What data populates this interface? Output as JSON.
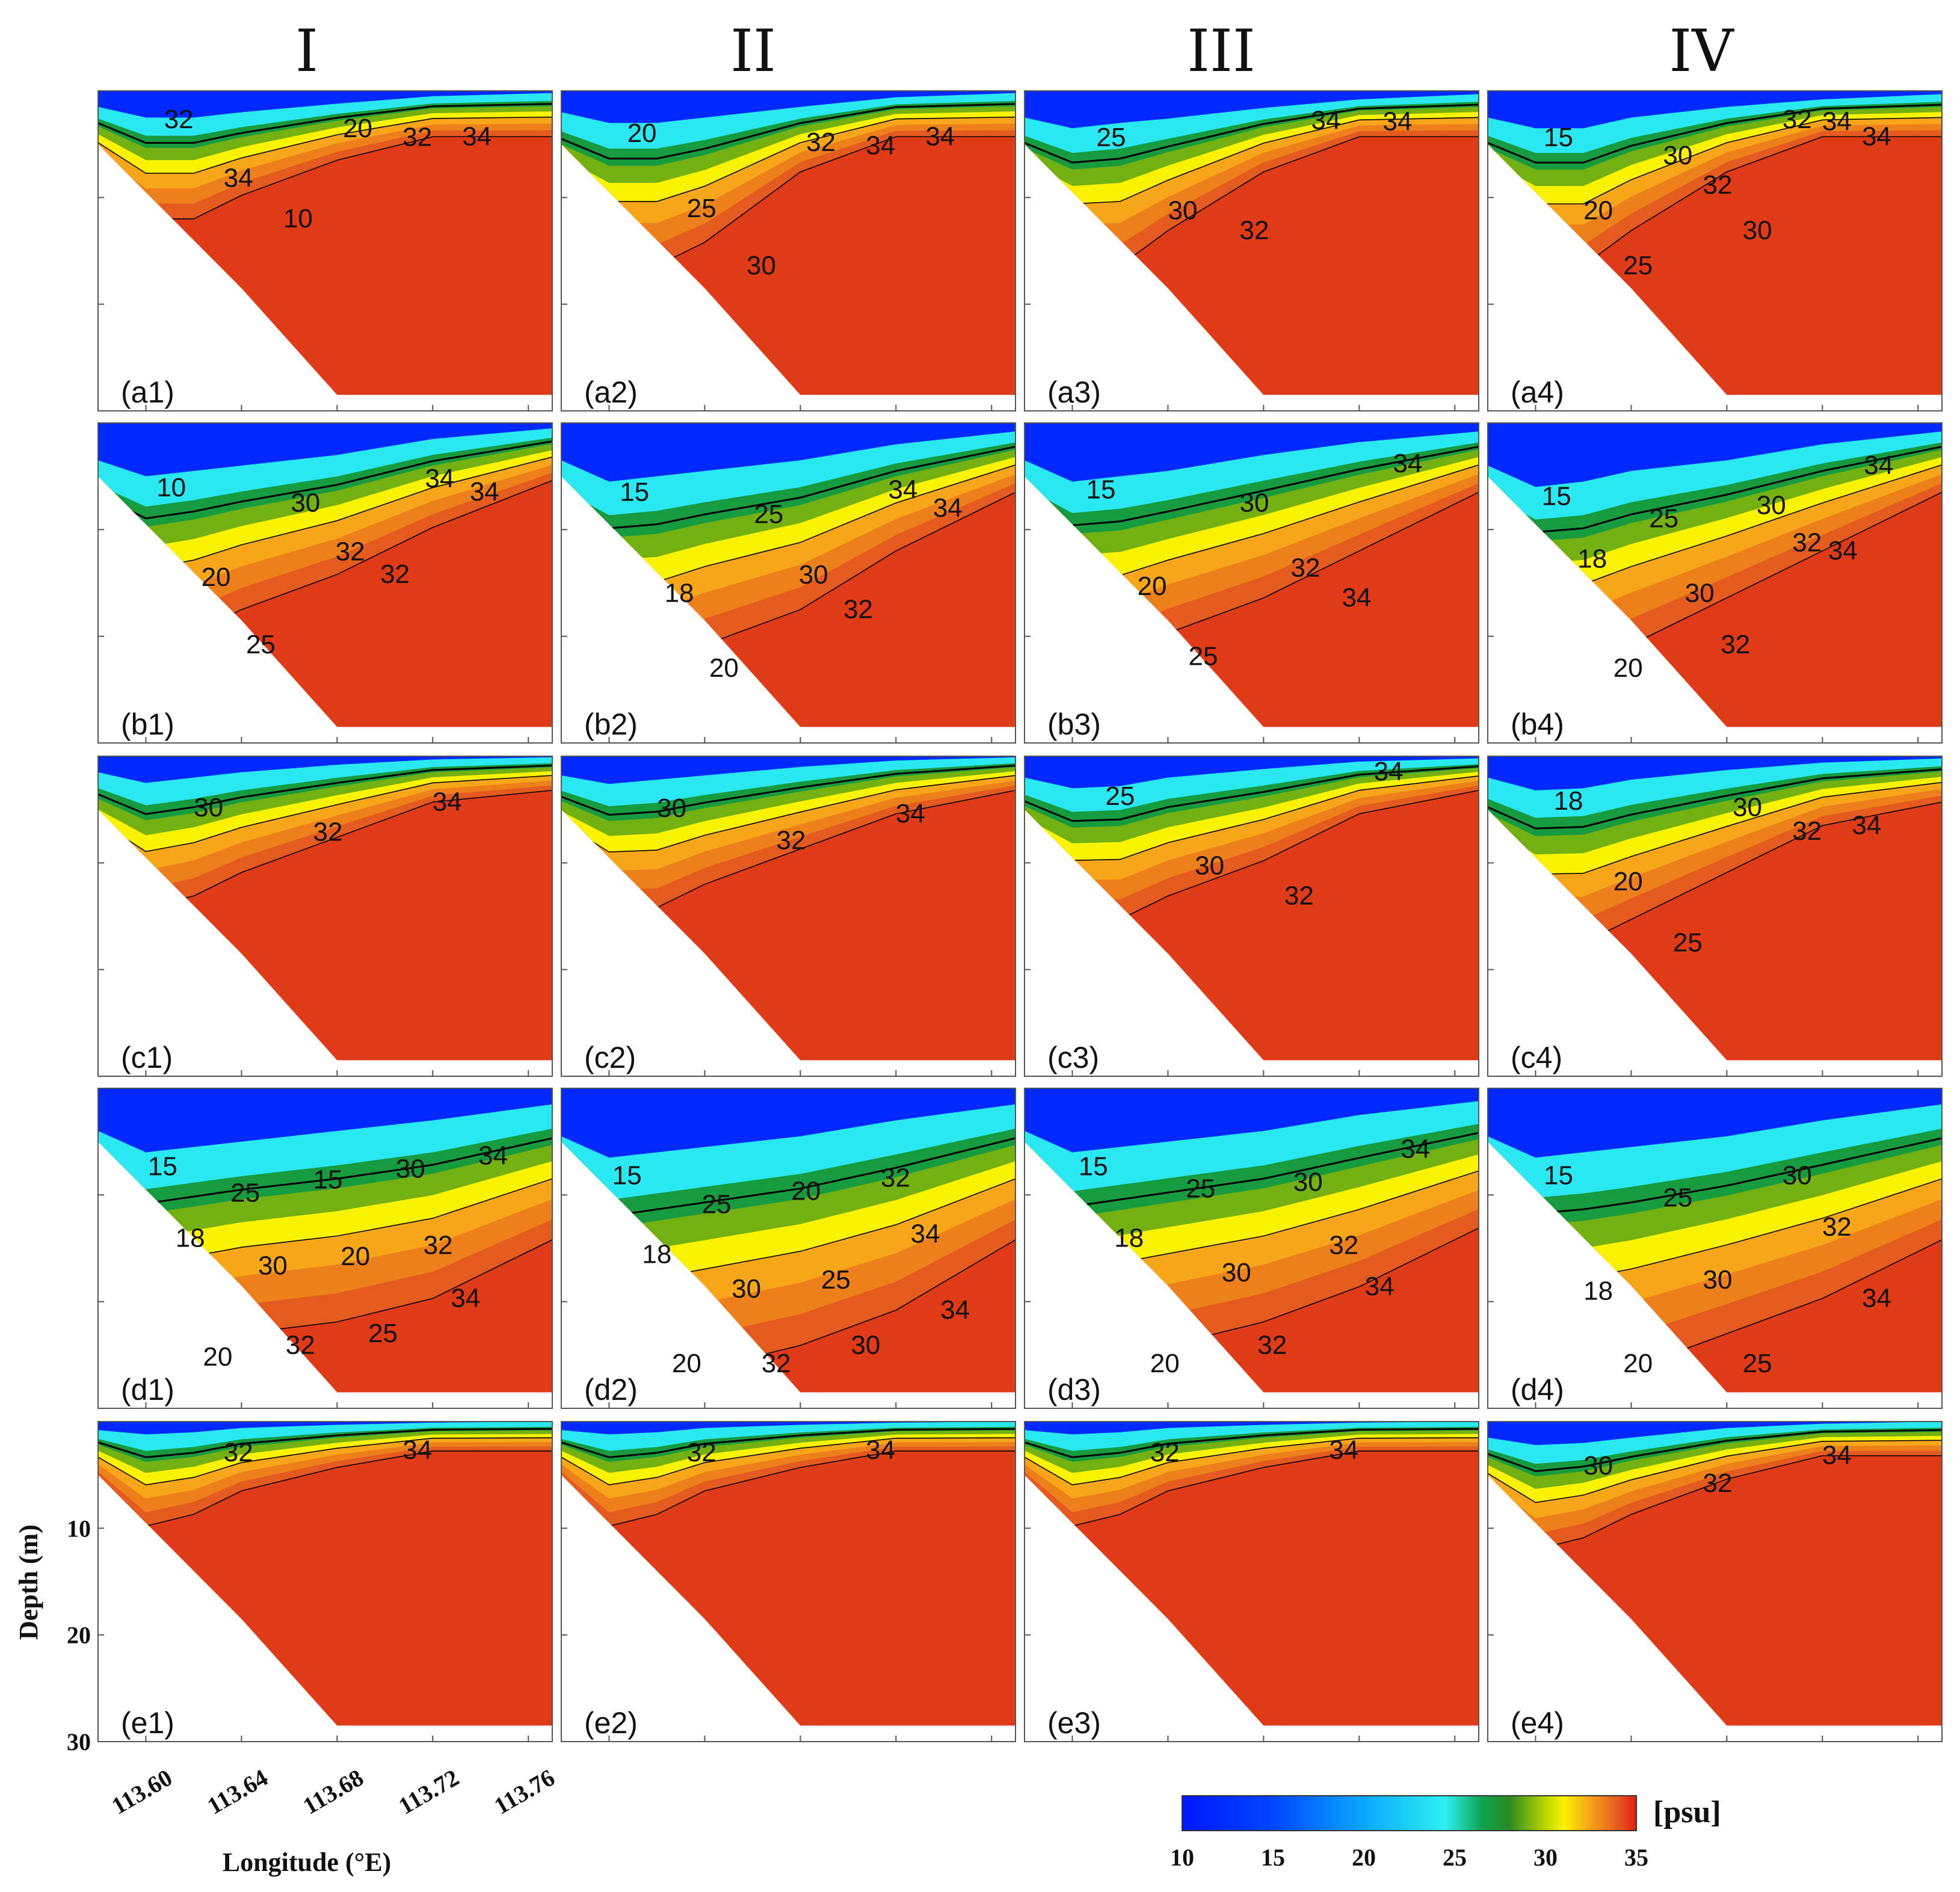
{
  "chart_data": {
    "type": "heatmap",
    "variable": "salinity",
    "column_titles": [
      "I",
      "II",
      "III",
      "IV"
    ],
    "row_ids": [
      "a",
      "b",
      "c",
      "d",
      "e"
    ],
    "panel_labels": [
      [
        "(a1)",
        "(a2)",
        "(a3)",
        "(a4)"
      ],
      [
        "(b1)",
        "(b2)",
        "(b3)",
        "(b4)"
      ],
      [
        "(c1)",
        "(c2)",
        "(c3)",
        "(c4)"
      ],
      [
        "(d1)",
        "(d2)",
        "(d3)",
        "(d4)"
      ],
      [
        "(e1)",
        "(e2)",
        "(e3)",
        "(e4)"
      ]
    ],
    "xlabel": "Longitude (°E)",
    "ylabel": "Depth (m)",
    "xticks": [
      "113.60",
      "113.64",
      "113.68",
      "113.72",
      "113.76"
    ],
    "xtick_values": [
      113.6,
      113.64,
      113.68,
      113.72,
      113.76
    ],
    "xlim": [
      113.58,
      113.77
    ],
    "yticks": [
      "10",
      "20",
      "30"
    ],
    "ytick_values": [
      10,
      20,
      30
    ],
    "ylim": [
      0,
      30
    ],
    "seabed": {
      "lon": [
        113.58,
        113.6,
        113.62,
        113.64,
        113.66,
        113.68,
        113.77
      ],
      "depth": [
        5,
        9.5,
        14,
        18.5,
        23.5,
        28.5,
        28.5
      ]
    },
    "colorbar": {
      "min": 10,
      "max": 35,
      "ticks": [
        "10",
        "15",
        "20",
        "25",
        "30",
        "35"
      ],
      "unit": "[psu]"
    },
    "fresh_layer_depth_m": [
      [
        [
          1.5,
          2.5,
          2.5,
          2.0,
          1.2,
          0.5,
          0.2
        ],
        [
          2.0,
          3.0,
          3.0,
          2.5,
          1.5,
          0.6,
          0.2
        ],
        [
          2.5,
          3.5,
          3.0,
          2.6,
          1.6,
          0.8,
          0.3
        ],
        [
          2.5,
          3.5,
          3.5,
          2.5,
          1.5,
          0.8,
          0.3
        ]
      ],
      [
        [
          3.5,
          5.0,
          4.5,
          4.0,
          3.0,
          1.5,
          0.5
        ],
        [
          3.5,
          5.5,
          5.0,
          4.5,
          3.5,
          2.0,
          0.8
        ],
        [
          3.5,
          5.5,
          5.0,
          4.5,
          3.0,
          1.8,
          0.8
        ],
        [
          4.0,
          6.0,
          5.5,
          4.5,
          3.5,
          2.0,
          0.8
        ]
      ],
      [
        [
          1.5,
          2.5,
          2.0,
          1.5,
          0.8,
          0.3,
          0.1
        ],
        [
          1.8,
          2.6,
          2.2,
          1.8,
          1.0,
          0.4,
          0.1
        ],
        [
          2.0,
          3.0,
          2.8,
          2.0,
          1.2,
          0.5,
          0.2
        ],
        [
          2.0,
          3.2,
          3.0,
          2.2,
          1.3,
          0.6,
          0.2
        ]
      ],
      [
        [
          4.0,
          6.0,
          5.5,
          5.0,
          4.0,
          3.0,
          1.5
        ],
        [
          4.5,
          6.5,
          6.0,
          5.5,
          4.5,
          3.0,
          1.5
        ],
        [
          4.0,
          6.0,
          5.5,
          5.0,
          4.0,
          2.5,
          1.2
        ],
        [
          4.5,
          6.5,
          6.0,
          5.5,
          4.5,
          3.0,
          1.5
        ]
      ],
      [
        [
          0.8,
          1.2,
          1.0,
          0.6,
          0.3,
          0.1,
          0.0
        ],
        [
          0.8,
          1.2,
          1.0,
          0.6,
          0.3,
          0.1,
          0.0
        ],
        [
          0.8,
          1.2,
          1.0,
          0.6,
          0.3,
          0.1,
          0.0
        ],
        [
          1.5,
          2.2,
          2.0,
          1.5,
          0.6,
          0.2,
          0.0
        ]
      ]
    ],
    "halocline_depth_m": [
      [
        [
          3.0,
          5.0,
          5.0,
          4.0,
          2.5,
          1.5,
          1.5
        ],
        [
          5.0,
          7.0,
          7.0,
          6.0,
          3.0,
          1.5,
          1.5
        ],
        [
          5.0,
          7.0,
          7.0,
          5.5,
          3.0,
          1.5,
          1.5
        ],
        [
          5.0,
          7.0,
          7.0,
          5.5,
          3.0,
          1.5,
          1.5
        ]
      ],
      [
        [
          7.0,
          9.0,
          8.5,
          7.5,
          6.0,
          4.0,
          2.0
        ],
        [
          8.0,
          10.0,
          10.0,
          9.0,
          7.5,
          5.0,
          2.5
        ],
        [
          7.5,
          9.5,
          9.5,
          8.5,
          7.0,
          5.0,
          2.5
        ],
        [
          8.0,
          10.0,
          10.0,
          9.0,
          7.0,
          5.0,
          2.5
        ]
      ],
      [
        [
          4.0,
          6.0,
          5.5,
          4.5,
          3.0,
          1.5,
          1.0
        ],
        [
          4.0,
          6.0,
          6.0,
          5.0,
          3.5,
          2.0,
          1.0
        ],
        [
          4.5,
          6.5,
          6.5,
          5.5,
          4.0,
          2.0,
          1.0
        ],
        [
          5.5,
          7.5,
          7.5,
          6.5,
          4.5,
          2.5,
          1.5
        ]
      ],
      [
        [
          9.0,
          11.0,
          10.5,
          10.0,
          9.5,
          8.5,
          6.0
        ],
        [
          10.0,
          12.5,
          12.0,
          11.5,
          10.5,
          9.0,
          6.0
        ],
        [
          9.0,
          11.5,
          11.0,
          10.5,
          9.5,
          8.0,
          5.5
        ],
        [
          10.0,
          12.0,
          12.0,
          11.5,
          10.0,
          8.5,
          6.0
        ]
      ],
      [
        [
          2.0,
          4.0,
          3.5,
          2.5,
          1.5,
          0.8,
          0.8
        ],
        [
          2.0,
          4.0,
          3.5,
          2.5,
          1.5,
          0.8,
          0.8
        ],
        [
          2.0,
          4.0,
          3.5,
          2.5,
          1.5,
          0.8,
          0.8
        ],
        [
          3.0,
          5.0,
          4.5,
          3.5,
          2.0,
          1.0,
          1.0
        ]
      ]
    ],
    "contour_labels": [
      [
        [
          "32",
          "34",
          "10",
          "20",
          "32",
          "34"
        ],
        [
          "20",
          "25",
          "30",
          "32",
          "34",
          "34"
        ],
        [
          "25",
          "30",
          "32",
          "34",
          "34"
        ],
        [
          "15",
          "20",
          "25",
          "30",
          "32",
          "30",
          "32",
          "34",
          "34"
        ]
      ],
      [
        [
          "10",
          "20",
          "25",
          "30",
          "32",
          "32",
          "34",
          "34"
        ],
        [
          "15",
          "18",
          "20",
          "25",
          "30",
          "32",
          "34",
          "34"
        ],
        [
          "15",
          "20",
          "25",
          "30",
          "32",
          "34",
          "34"
        ],
        [
          "15",
          "18",
          "20",
          "25",
          "30",
          "32",
          "30",
          "32",
          "34",
          "34"
        ]
      ],
      [
        [
          "30",
          "32",
          "34"
        ],
        [
          "30",
          "32",
          "34"
        ],
        [
          "25",
          "30",
          "32",
          "34"
        ],
        [
          "18",
          "20",
          "25",
          "30",
          "32",
          "34"
        ]
      ],
      [
        [
          "15",
          "18",
          "20",
          "25",
          "30",
          "32",
          "15",
          "20",
          "25",
          "30",
          "32",
          "34",
          "34"
        ],
        [
          "15",
          "18",
          "20",
          "25",
          "30",
          "32",
          "20",
          "25",
          "30",
          "32",
          "34",
          "34"
        ],
        [
          "15",
          "18",
          "20",
          "25",
          "30",
          "32",
          "30",
          "32",
          "34",
          "34"
        ],
        [
          "15",
          "18",
          "20",
          "25",
          "30",
          "25",
          "30",
          "32",
          "34"
        ]
      ],
      [
        [
          "32",
          "34"
        ],
        [
          "32",
          "34"
        ],
        [
          "32",
          "34"
        ],
        [
          "30",
          "32",
          "34"
        ]
      ]
    ]
  }
}
